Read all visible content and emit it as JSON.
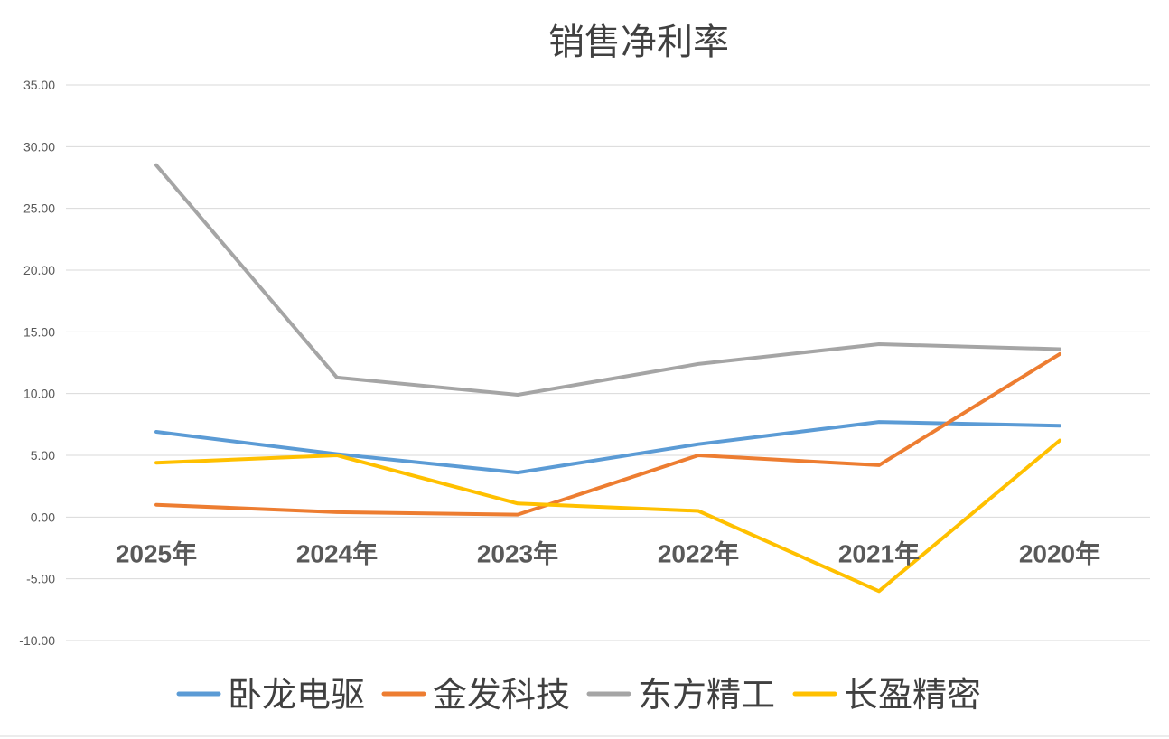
{
  "chart_data": {
    "type": "line",
    "title": "销售净利率",
    "xlabel": "",
    "ylabel": "",
    "categories": [
      "2025年",
      "2024年",
      "2023年",
      "2022年",
      "2021年",
      "2020年"
    ],
    "ylim": [
      -10,
      35
    ],
    "y_ticks": [
      "35.00",
      "30.00",
      "25.00",
      "20.00",
      "15.00",
      "10.00",
      "5.00",
      "0.00",
      "-5.00",
      "-10.00"
    ],
    "y_tick_values": [
      35,
      30,
      25,
      20,
      15,
      10,
      5,
      0,
      -5,
      -10
    ],
    "grid": true,
    "legend_position": "bottom",
    "series": [
      {
        "name": "卧龙电驱",
        "color": "#5b9bd5",
        "values": [
          6.9,
          5.1,
          3.6,
          5.9,
          7.7,
          7.4
        ]
      },
      {
        "name": "金发科技",
        "color": "#ed7d31",
        "values": [
          1.0,
          0.4,
          0.2,
          5.0,
          4.2,
          13.2
        ]
      },
      {
        "name": "东方精工",
        "color": "#a5a5a5",
        "values": [
          28.5,
          11.3,
          9.9,
          12.4,
          14.0,
          13.6
        ]
      },
      {
        "name": "长盈精密",
        "color": "#ffc000",
        "values": [
          4.4,
          5.0,
          1.1,
          0.5,
          -6.0,
          6.2
        ]
      }
    ]
  }
}
